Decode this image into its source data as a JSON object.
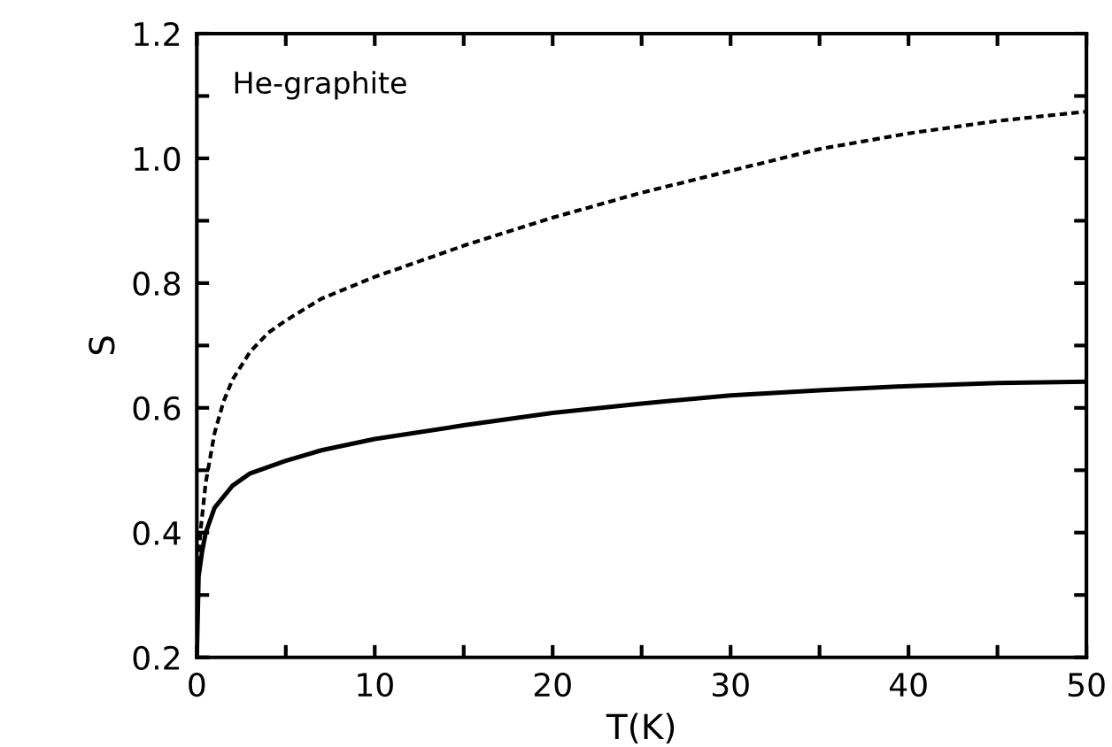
{
  "chart_data": {
    "type": "line",
    "xlabel": "T(K)",
    "ylabel": "S",
    "annotations": [
      "He-graphite"
    ],
    "xlim": [
      0,
      50
    ],
    "ylim": [
      0.2,
      1.2
    ],
    "xticks": [
      0,
      {
        "value": 5,
        "label": null
      },
      10,
      {
        "value": 15,
        "label": null
      },
      20,
      {
        "value": 25,
        "label": null
      },
      30,
      {
        "value": 35,
        "label": null
      },
      40,
      {
        "value": 45,
        "label": null
      },
      50
    ],
    "yticks": [
      0.2,
      {
        "value": 0.3,
        "label": null
      },
      0.4,
      {
        "value": 0.5,
        "label": null
      },
      0.6,
      {
        "value": 0.7,
        "label": null
      },
      0.8,
      {
        "value": 0.9,
        "label": null
      },
      {
        "value": 1.0,
        "label": "1.0"
      },
      {
        "value": 1.1,
        "label": null
      },
      1.2
    ],
    "grid": false,
    "marker": "none",
    "series": [
      {
        "color": "#000000",
        "line_style": "solid",
        "x": [
          0,
          0.1,
          0.3,
          0.5,
          1,
          2,
          3,
          5,
          7,
          10,
          15,
          20,
          25,
          30,
          35,
          40,
          45,
          50
        ],
        "values": [
          0.2,
          0.33,
          0.37,
          0.4,
          0.44,
          0.475,
          0.495,
          0.515,
          0.532,
          0.55,
          0.572,
          0.592,
          0.607,
          0.62,
          0.628,
          0.635,
          0.64,
          0.642
        ]
      },
      {
        "color": "#000000",
        "line_style": "dashed",
        "x": [
          0.1,
          0.2,
          0.5,
          1,
          1.5,
          2,
          3,
          4,
          5,
          7,
          10,
          15,
          20,
          25,
          30,
          35,
          40,
          45,
          50
        ],
        "values": [
          0.35,
          0.4,
          0.48,
          0.56,
          0.61,
          0.645,
          0.69,
          0.72,
          0.74,
          0.775,
          0.81,
          0.86,
          0.905,
          0.945,
          0.98,
          1.015,
          1.04,
          1.06,
          1.075
        ]
      }
    ]
  }
}
